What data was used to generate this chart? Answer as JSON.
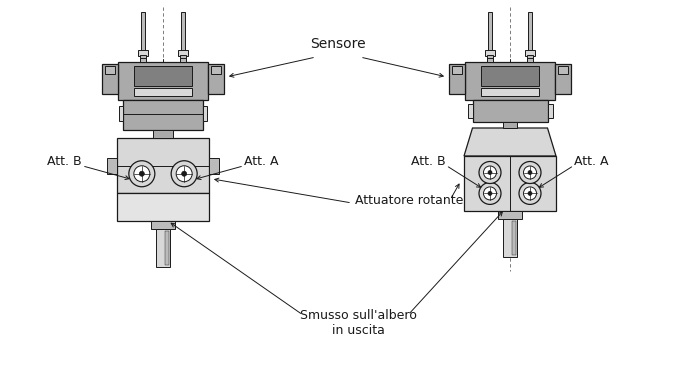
{
  "bg_color": "#ffffff",
  "line_color": "#1a1a1a",
  "gray_dark": "#808080",
  "gray_medium": "#aaaaaa",
  "gray_light": "#bbbbbb",
  "gray_lighter": "#d8d8d8",
  "gray_body": "#e4e4e4",
  "gray_lower": "#e8e8e8",
  "font_size_label": 9,
  "font_size_annot": 9,
  "annotations": {
    "sensore": "Sensore",
    "attuatore": "Attuatore rotante",
    "smusso": "Smusso sull'albero\nin uscita",
    "att_b_left": "Att. B",
    "att_a_left": "Att. A",
    "att_b_right": "Att. B",
    "att_a_right": "Att. A"
  },
  "fig_width": 6.79,
  "fig_height": 3.85,
  "dpi": 100
}
